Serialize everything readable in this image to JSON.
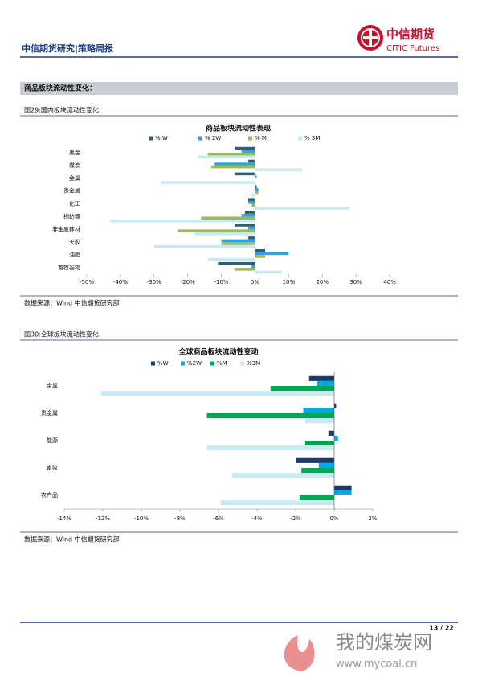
{
  "header": {
    "title": "中信期货研究|策略周报",
    "logo_cn": "中信期货",
    "logo_en": "CITIC Futures"
  },
  "section": {
    "title": "商品板块流动性变化："
  },
  "figures": [
    {
      "caption": "图29:国内板块流动性变化",
      "source": "数据来源：Wind 中信期货研究部"
    },
    {
      "caption": "图30:全球板块流动性变化",
      "source": "数据来源：Wind 中信期货研究部"
    }
  ],
  "chart_data": [
    {
      "type": "hbar",
      "title": "商品板块流动性表现",
      "categories": [
        "黑金",
        "煤炭",
        "金属",
        "贵金属",
        "化工",
        "棉纺糖",
        "非金属建材",
        "天胶",
        "油脂",
        "畜牧谷物"
      ],
      "series": [
        {
          "name": "% W",
          "color": "#2f5f6f",
          "values": [
            -6,
            -2,
            -6,
            0.5,
            -2,
            -3,
            -6,
            -2,
            3,
            -11
          ]
        },
        {
          "name": "% 2W",
          "color": "#2ea3d8",
          "values": [
            -4,
            -12,
            0.5,
            1,
            -2,
            -4,
            -2,
            -10,
            10,
            -1
          ]
        },
        {
          "name": "% M",
          "color": "#9bbb59",
          "values": [
            -14,
            -13,
            0,
            1,
            -1,
            -16,
            -23,
            -10,
            3,
            -6
          ]
        },
        {
          "name": "% 3M",
          "color": "#c8ebf3",
          "values": [
            -17,
            14,
            -28,
            -1,
            28,
            -43,
            -18,
            -30,
            -14,
            8
          ]
        }
      ],
      "xlim": [
        -50,
        40
      ],
      "xticks": [
        {
          "value": -50,
          "label": "-50%"
        },
        {
          "value": -40,
          "label": "-40%"
        },
        {
          "value": -30,
          "label": "-30%"
        },
        {
          "value": -20,
          "label": "-20%"
        },
        {
          "value": -10,
          "label": "-10%"
        },
        {
          "value": 0,
          "label": "0%"
        },
        {
          "value": 10,
          "label": "10%"
        },
        {
          "value": 20,
          "label": "20%"
        },
        {
          "value": 30,
          "label": "30%"
        },
        {
          "value": 40,
          "label": "40%"
        }
      ]
    },
    {
      "type": "hbar",
      "title": "全球商品板块流动性变动",
      "categories": [
        "金属",
        "贵金属",
        "能源",
        "畜牧",
        "农产品"
      ],
      "series": [
        {
          "name": "%W",
          "color": "#1f3864",
          "values": [
            -1.3,
            0.1,
            -0.3,
            -2.0,
            0.9
          ]
        },
        {
          "name": "%2W",
          "color": "#00a9e6",
          "values": [
            -0.9,
            -1.6,
            0.2,
            -0.8,
            0.9
          ]
        },
        {
          "name": "%M",
          "color": "#00a651",
          "values": [
            -3.3,
            -6.6,
            -1.5,
            -1.7,
            -1.8
          ]
        },
        {
          "name": "%3M",
          "color": "#c7eaf5",
          "values": [
            -12.1,
            -1.5,
            -6.6,
            -5.3,
            -5.9
          ]
        }
      ],
      "xlim": [
        -14,
        2
      ],
      "xticks": [
        {
          "value": -14,
          "label": "-14%"
        },
        {
          "value": -12,
          "label": "-12%"
        },
        {
          "value": -10,
          "label": "-10%"
        },
        {
          "value": -8,
          "label": "-8%"
        },
        {
          "value": -6,
          "label": "-6%"
        },
        {
          "value": -4,
          "label": "-4%"
        },
        {
          "value": -2,
          "label": "-2%"
        },
        {
          "value": 0,
          "label": "0%"
        },
        {
          "value": 2,
          "label": "2%"
        }
      ]
    }
  ],
  "footer": {
    "page": "13 / 22",
    "watermark_cn": "我的煤炭网",
    "watermark_url": "www.mycoal.cn"
  }
}
